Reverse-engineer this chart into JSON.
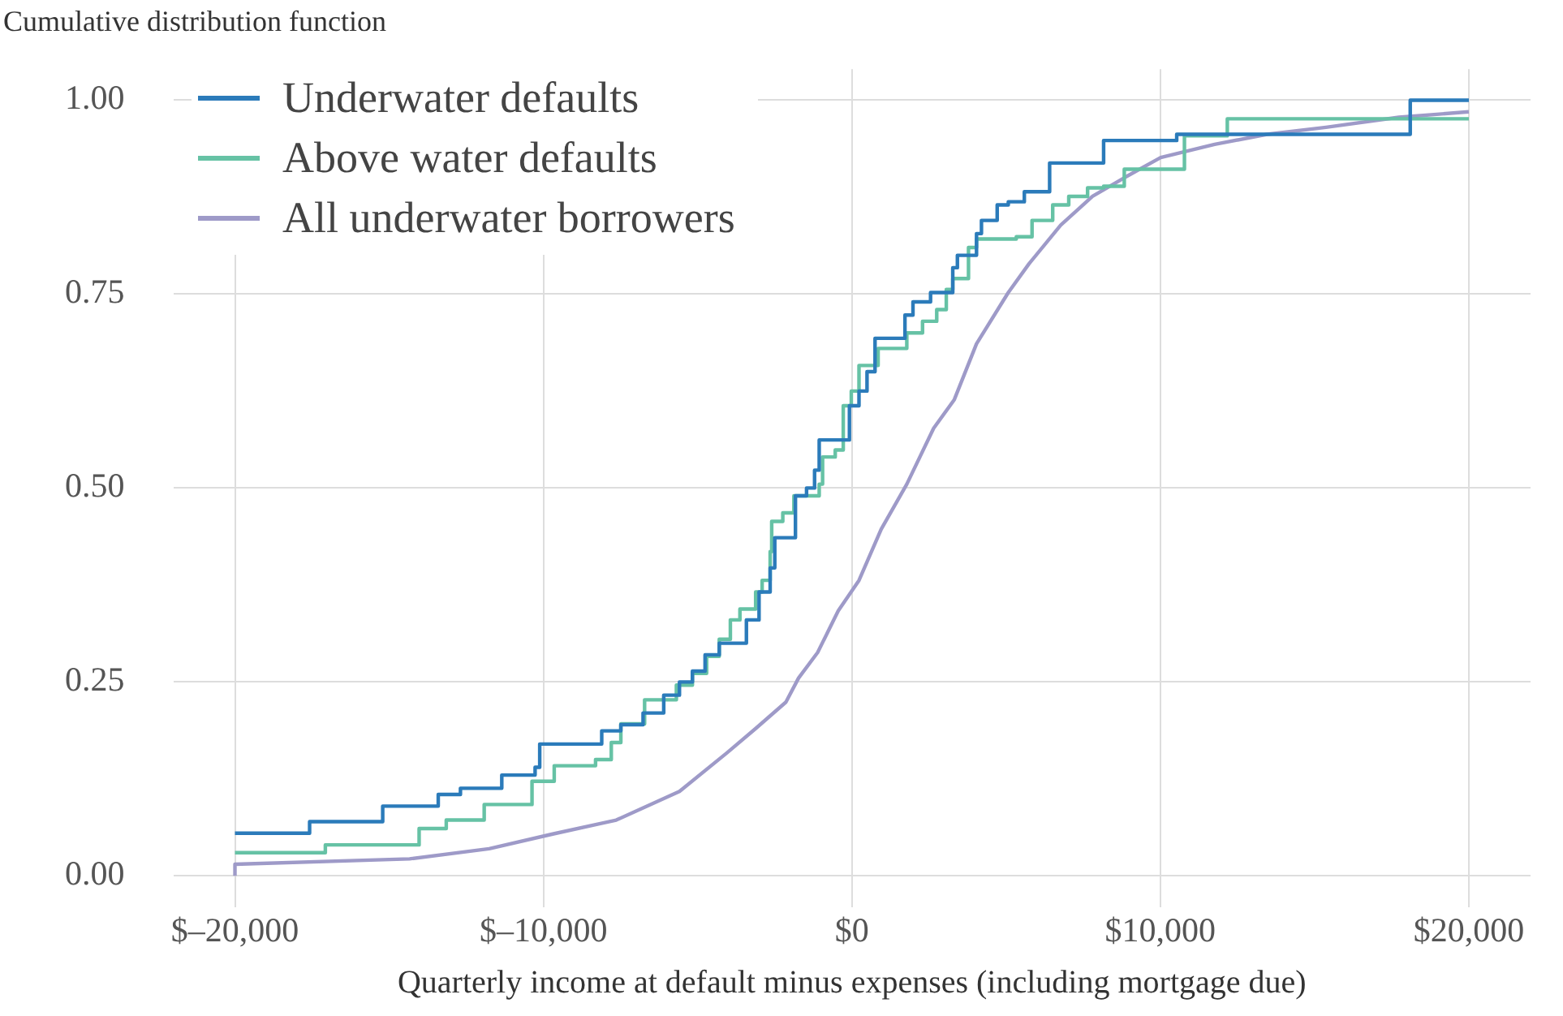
{
  "chart_data": {
    "type": "step",
    "ylabel": "Cumulative distribution function",
    "xlabel": "Quarterly income at default minus expenses (including mortgage due)",
    "xlim": [
      -22000,
      22000
    ],
    "ylim": [
      -0.04,
      1.04
    ],
    "xticks": [
      {
        "value": -20000,
        "label": "$–20,000"
      },
      {
        "value": -10000,
        "label": "$–10,000"
      },
      {
        "value": 0,
        "label": "$0"
      },
      {
        "value": 10000,
        "label": "$10,000"
      },
      {
        "value": 20000,
        "label": "$20,000"
      }
    ],
    "yticks": [
      {
        "value": 0,
        "label": "0.00"
      },
      {
        "value": 0.25,
        "label": "0.25"
      },
      {
        "value": 0.5,
        "label": "0.50"
      },
      {
        "value": 0.75,
        "label": "0.75"
      },
      {
        "value": 1,
        "label": "1.00"
      }
    ],
    "grid": true,
    "legend": "top left",
    "marker": "none",
    "line_style": "solid",
    "series": [
      {
        "name": "Underwater defaults",
        "color": "#2b7bba",
        "x": [
          -20000,
          -17580,
          -15210,
          -13410,
          -12690,
          -11350,
          -10270,
          -10120,
          -8110,
          -7490,
          -6770,
          -6100,
          -5590,
          -5170,
          -4760,
          -4300,
          -3420,
          -3010,
          -2650,
          -2500,
          -1830,
          -1470,
          -1210,
          -1060,
          -80,
          230,
          490,
          750,
          1720,
          1980,
          2550,
          3270,
          3420,
          4040,
          4200,
          4710,
          5070,
          5590,
          6410,
          8160,
          10530,
          18100,
          20000
        ],
        "values": [
          0.055,
          0.07,
          0.09,
          0.105,
          0.113,
          0.13,
          0.14,
          0.17,
          0.187,
          0.195,
          0.21,
          0.233,
          0.25,
          0.264,
          0.285,
          0.3,
          0.33,
          0.366,
          0.397,
          0.436,
          0.49,
          0.5,
          0.523,
          0.562,
          0.606,
          0.625,
          0.65,
          0.693,
          0.723,
          0.74,
          0.752,
          0.784,
          0.8,
          0.828,
          0.845,
          0.865,
          0.869,
          0.882,
          0.919,
          0.948,
          0.956,
          1.0,
          1.0
        ]
      },
      {
        "name": "Above water defaults",
        "color": "#66c2a5",
        "x": [
          -20000,
          -17070,
          -14030,
          -13150,
          -11920,
          -10370,
          -9650,
          -8310,
          -7800,
          -7490,
          -6720,
          -5690,
          -5170,
          -4710,
          -4300,
          -3940,
          -3630,
          -3120,
          -2910,
          -2650,
          -2600,
          -2240,
          -1880,
          -1060,
          -950,
          -540,
          -280,
          -20,
          230,
          850,
          1780,
          2290,
          2750,
          3060,
          3270,
          3780,
          4040,
          5330,
          5840,
          6510,
          7030,
          7640,
          8160,
          8830,
          10780,
          12170,
          20000
        ],
        "values": [
          0.03,
          0.04,
          0.061,
          0.072,
          0.092,
          0.122,
          0.142,
          0.15,
          0.172,
          0.196,
          0.227,
          0.246,
          0.261,
          0.283,
          0.305,
          0.33,
          0.344,
          0.366,
          0.381,
          0.418,
          0.457,
          0.468,
          0.49,
          0.505,
          0.54,
          0.549,
          0.606,
          0.625,
          0.658,
          0.68,
          0.7,
          0.715,
          0.73,
          0.756,
          0.77,
          0.81,
          0.821,
          0.824,
          0.845,
          0.865,
          0.876,
          0.887,
          0.889,
          0.911,
          0.954,
          0.976,
          0.976
        ]
      },
      {
        "name": "All underwater borrowers",
        "color": "#9e9ac8",
        "type": "line",
        "x": [
          -20000,
          -20000,
          -14340,
          -11760,
          -9700,
          -7640,
          -5590,
          -4040,
          -3120,
          -2140,
          -1730,
          -1110,
          -440,
          230,
          950,
          1780,
          2650,
          3320,
          4040,
          5070,
          5740,
          6770,
          7800,
          8830,
          10010,
          11760,
          13460,
          15370,
          17730,
          20000
        ],
        "values": [
          0,
          0.015,
          0.022,
          0.035,
          0.054,
          0.072,
          0.109,
          0.159,
          0.19,
          0.224,
          0.255,
          0.288,
          0.342,
          0.381,
          0.447,
          0.505,
          0.577,
          0.614,
          0.686,
          0.752,
          0.789,
          0.839,
          0.876,
          0.9,
          0.926,
          0.943,
          0.956,
          0.965,
          0.978,
          0.985
        ]
      }
    ]
  }
}
